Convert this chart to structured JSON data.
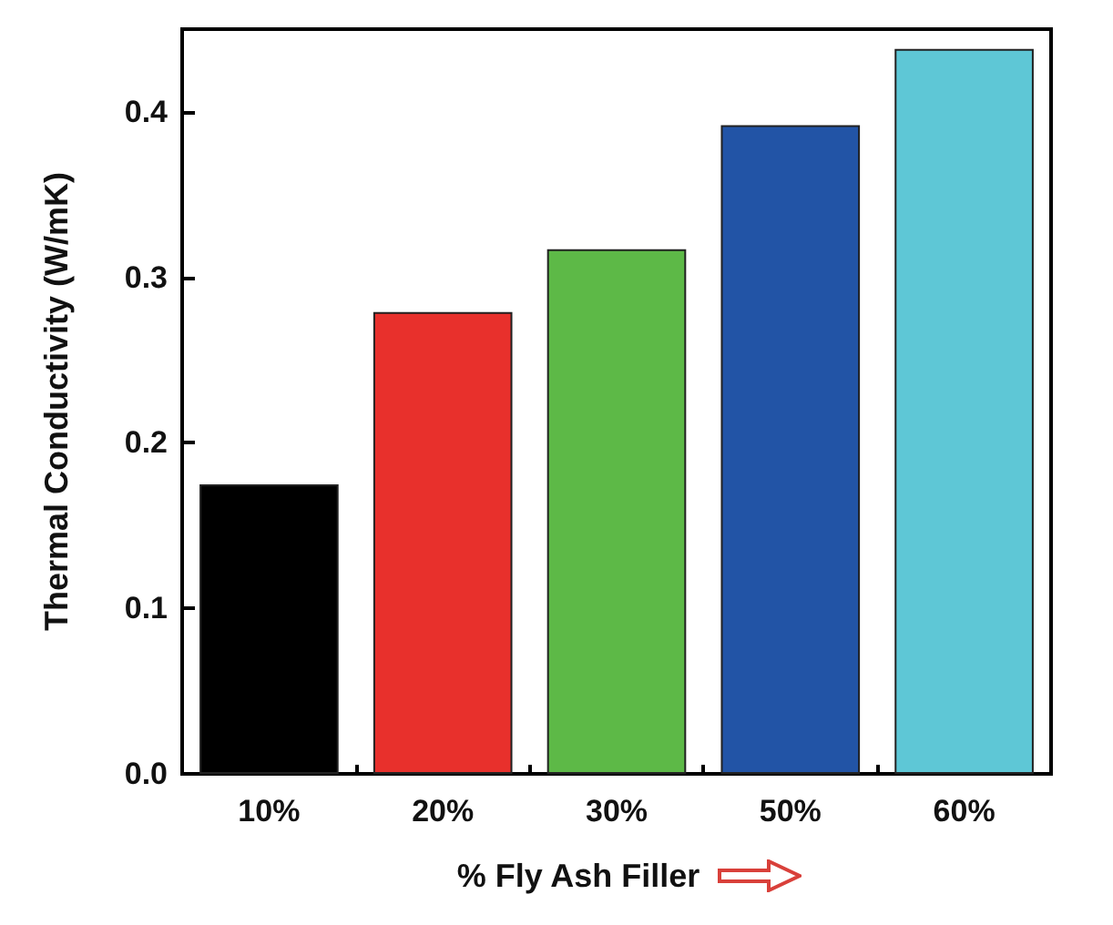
{
  "chart_data": {
    "type": "bar",
    "xlabel": "% Fly Ash Filler",
    "ylabel": "Thermal Conductivity (W/mK)",
    "categories": [
      "10%",
      "20%",
      "30%",
      "50%",
      "60%"
    ],
    "values": [
      0.175,
      0.279,
      0.317,
      0.392,
      0.438
    ],
    "colors": [
      "#000000",
      "#e8302c",
      "#5db947",
      "#2254a6",
      "#5ec7d6"
    ],
    "ylim": [
      0,
      0.45
    ],
    "yticks": [
      {
        "value": 0,
        "label": "0.0"
      },
      0.1,
      0.2,
      0.3,
      0.4
    ],
    "grid": false
  }
}
